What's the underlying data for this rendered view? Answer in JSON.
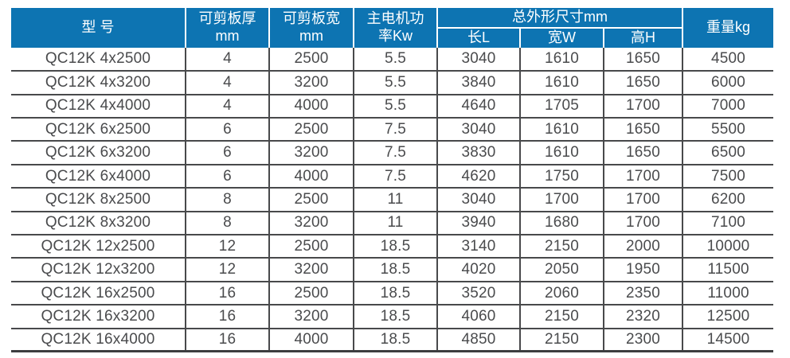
{
  "colors": {
    "header_bg": "#0d74b2",
    "header_text": "#ffffff",
    "body_text": "#4a4b4d",
    "grid_line": "#48494b"
  },
  "table": {
    "header": {
      "model": "型 号",
      "thickness_line1": "可剪板厚",
      "thickness_line2": "mm",
      "width_line1": "可剪板宽",
      "width_line2": "mm",
      "power_line1": "主电机功",
      "power_line2": "率Kw",
      "dimensions_group": "总外形尺寸mm",
      "dim_length": "长L",
      "dim_width": "宽W",
      "dim_height": "高H",
      "weight": "重量kg"
    },
    "rows": [
      {
        "model": "QC12K 4x2500",
        "thickness": "4",
        "cut_width": "2500",
        "power": "5.5",
        "length": "3040",
        "width": "1610",
        "height": "1650",
        "weight": "4500"
      },
      {
        "model": "QC12K 4x3200",
        "thickness": "4",
        "cut_width": "3200",
        "power": "5.5",
        "length": "3840",
        "width": "1610",
        "height": "1650",
        "weight": "6000"
      },
      {
        "model": "QC12K 4x4000",
        "thickness": "4",
        "cut_width": "4000",
        "power": "5.5",
        "length": "4640",
        "width": "1705",
        "height": "1700",
        "weight": "7000"
      },
      {
        "model": "QC12K 6x2500",
        "thickness": "6",
        "cut_width": "2500",
        "power": "7.5",
        "length": "3040",
        "width": "1610",
        "height": "1650",
        "weight": "5500"
      },
      {
        "model": "QC12K 6x3200",
        "thickness": "6",
        "cut_width": "3200",
        "power": "7.5",
        "length": "3830",
        "width": "1610",
        "height": "1650",
        "weight": "6500"
      },
      {
        "model": "QC12K 6x4000",
        "thickness": "6",
        "cut_width": "4000",
        "power": "7.5",
        "length": "4620",
        "width": "1750",
        "height": "1700",
        "weight": "7500"
      },
      {
        "model": "QC12K 8x2500",
        "thickness": "8",
        "cut_width": "2500",
        "power": "11",
        "length": "3040",
        "width": "1700",
        "height": "1700",
        "weight": "6200"
      },
      {
        "model": "QC12K 8x3200",
        "thickness": "8",
        "cut_width": "3200",
        "power": "11",
        "length": "3940",
        "width": "1680",
        "height": "1700",
        "weight": "7100"
      },
      {
        "model": "QC12K 12x2500",
        "thickness": "12",
        "cut_width": "2500",
        "power": "18.5",
        "length": "3140",
        "width": "2150",
        "height": "2000",
        "weight": "10000"
      },
      {
        "model": "QC12K 12x3200",
        "thickness": "12",
        "cut_width": "3200",
        "power": "18.5",
        "length": "4020",
        "width": "2050",
        "height": "1950",
        "weight": "11500"
      },
      {
        "model": "QC12K 16x2500",
        "thickness": "16",
        "cut_width": "2500",
        "power": "18.5",
        "length": "3520",
        "width": "2060",
        "height": "2350",
        "weight": "11000"
      },
      {
        "model": "QC12K 16x3200",
        "thickness": "16",
        "cut_width": "3200",
        "power": "18.5",
        "length": "4060",
        "width": "2150",
        "height": "2320",
        "weight": "12500"
      },
      {
        "model": "QC12K 16x4000",
        "thickness": "16",
        "cut_width": "4000",
        "power": "18.5",
        "length": "4850",
        "width": "2150",
        "height": "2300",
        "weight": "14500"
      }
    ]
  }
}
